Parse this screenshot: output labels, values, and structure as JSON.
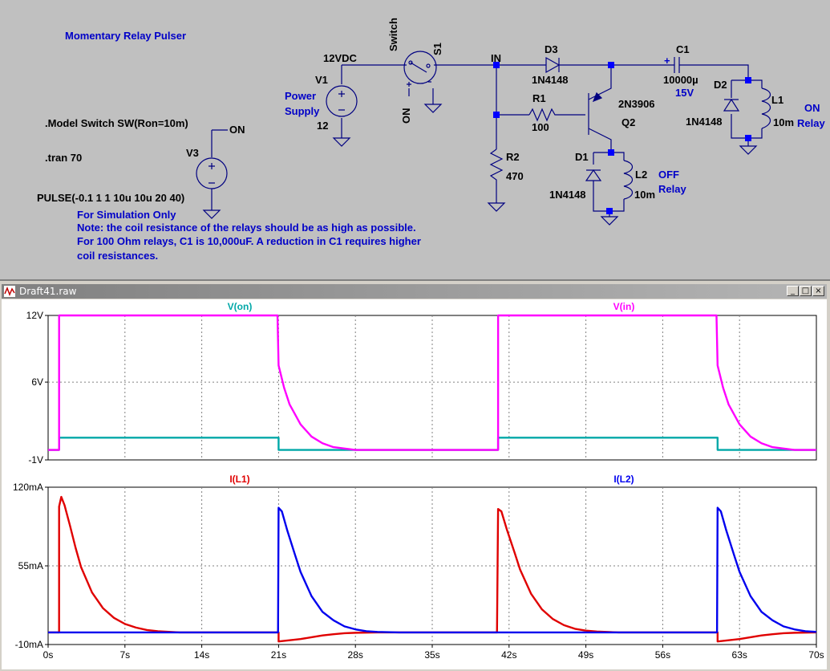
{
  "schematic": {
    "title": "Momentary Relay Pulser",
    "model_directive": ".Model Switch SW(Ron=10m)",
    "tran_directive": ".tran 70",
    "pulse_spec": "PULSE(-0.1 1 1 10u 10u 20 40)",
    "sim_only_label": "For Simulation Only",
    "note_lines": [
      "Note: the coil resistance of the relays should be as high as possible.",
      "For 100 Ohm relays, C1 is 10,000uF. A reduction in C1 requires higher",
      "coil resistances."
    ],
    "labels": {
      "net_12vdc": "12VDC",
      "v1": "V1",
      "v1_value": "12",
      "power": "Power",
      "supply": "Supply",
      "switch_label": "Switch",
      "s1": "S1",
      "on_switch": "ON",
      "on_v3": "ON",
      "v3": "V3",
      "in_net": "IN",
      "d3": "D3",
      "d3_model": "1N4148",
      "r1": "R1",
      "r1_value": "100",
      "q_model": "2N3906",
      "q2": "Q2",
      "r2": "R2",
      "r2_value": "470",
      "d1": "D1",
      "d1_model": "1N4148",
      "l2": "L2",
      "l2_value": "10m",
      "off_label": "OFF",
      "relay_label_off": "Relay",
      "c1": "C1",
      "c1_value": "10000µ",
      "c1_voltage": "15V",
      "d2": "D2",
      "d2_model": "1N4148",
      "l1": "L1",
      "l1_value": "10m",
      "on_relay_label": "ON",
      "relay_label_on": "Relay",
      "plus": "+"
    }
  },
  "plot_window": {
    "title": "Draft41.raw",
    "buttons": [
      "_",
      "□",
      "×"
    ]
  },
  "chart_data": [
    {
      "type": "line",
      "pane": "voltage",
      "y_ticks": [
        "12V",
        "6V",
        "-1V"
      ],
      "y_tick_values": [
        12,
        6,
        -1
      ],
      "ylim": [
        -1,
        12
      ],
      "x_ticks": [],
      "grid": true,
      "series": [
        {
          "name": "V(on)",
          "color": "#00a8a8",
          "x": [
            0,
            1,
            1.001,
            21,
            21.001,
            41,
            41.001,
            61,
            61.001,
            70
          ],
          "y": [
            -0.1,
            -0.1,
            1,
            1,
            -0.1,
            -0.1,
            1,
            1,
            -0.1,
            -0.1
          ]
        },
        {
          "name": "V(in)",
          "color": "#ff00ff",
          "x": [
            0,
            1,
            1.001,
            20.9,
            21,
            21.5,
            22,
            23,
            24,
            25,
            26,
            28,
            30,
            41,
            41.001,
            60.9,
            61,
            61.5,
            62,
            63,
            64,
            65,
            66,
            68,
            70
          ],
          "y": [
            -0.1,
            -0.1,
            12,
            12,
            7.5,
            5.5,
            4.0,
            2.2,
            1.1,
            0.5,
            0.15,
            -0.1,
            -0.1,
            -0.1,
            12,
            12,
            7.5,
            5.5,
            4.0,
            2.2,
            1.1,
            0.5,
            0.15,
            -0.1,
            -0.1
          ]
        }
      ]
    },
    {
      "type": "line",
      "pane": "current",
      "y_ticks": [
        "120mA",
        "55mA",
        "-10mA"
      ],
      "y_tick_values": [
        120,
        55,
        -10
      ],
      "ylim": [
        -10,
        120
      ],
      "x_ticks": [
        "0s",
        "7s",
        "14s",
        "21s",
        "28s",
        "35s",
        "42s",
        "49s",
        "56s",
        "63s",
        "70s"
      ],
      "x_tick_values": [
        0,
        7,
        14,
        21,
        28,
        35,
        42,
        49,
        56,
        63,
        70
      ],
      "xlim": [
        0,
        70
      ],
      "grid": true,
      "series": [
        {
          "name": "I(L1)",
          "color": "#e00000",
          "x": [
            0,
            1,
            1.001,
            1.2,
            1.5,
            2,
            2.5,
            3,
            4,
            5,
            6,
            7,
            8,
            9,
            10,
            12,
            21,
            21.001,
            22,
            23,
            24,
            25,
            26,
            27,
            28,
            30,
            40.9,
            41,
            41.3,
            41.8,
            42.5,
            43,
            44,
            45,
            46,
            47,
            48,
            49,
            50,
            52,
            61,
            61.001,
            62,
            63,
            64,
            65,
            66,
            67,
            68,
            70
          ],
          "y": [
            0,
            0,
            104,
            112,
            105,
            88,
            70,
            54,
            33,
            20,
            12,
            7,
            4,
            2,
            1,
            0,
            0,
            -7.5,
            -6.5,
            -5.5,
            -4,
            -2.5,
            -1.5,
            -0.7,
            -0.3,
            0,
            0,
            102,
            100,
            85,
            66,
            52,
            32,
            19,
            11,
            6,
            3,
            1.5,
            0.7,
            0,
            0,
            -7.5,
            -6.5,
            -5.5,
            -4,
            -2.5,
            -1.5,
            -0.7,
            -0.3,
            0
          ]
        },
        {
          "name": "I(L2)",
          "color": "#0000ee",
          "x": [
            0,
            20.95,
            21,
            21.3,
            21.8,
            22.5,
            23,
            24,
            25,
            26,
            27,
            28,
            29,
            30,
            32,
            60.95,
            61,
            61.3,
            61.8,
            62.5,
            63,
            64,
            65,
            66,
            67,
            68,
            69,
            70
          ],
          "y": [
            0,
            0,
            103,
            100,
            84,
            64,
            50,
            30,
            17,
            10,
            5,
            2.5,
            1,
            0.4,
            0,
            0,
            103,
            100,
            84,
            64,
            50,
            30,
            17,
            10,
            5,
            2.5,
            1,
            0.4
          ]
        }
      ]
    }
  ]
}
